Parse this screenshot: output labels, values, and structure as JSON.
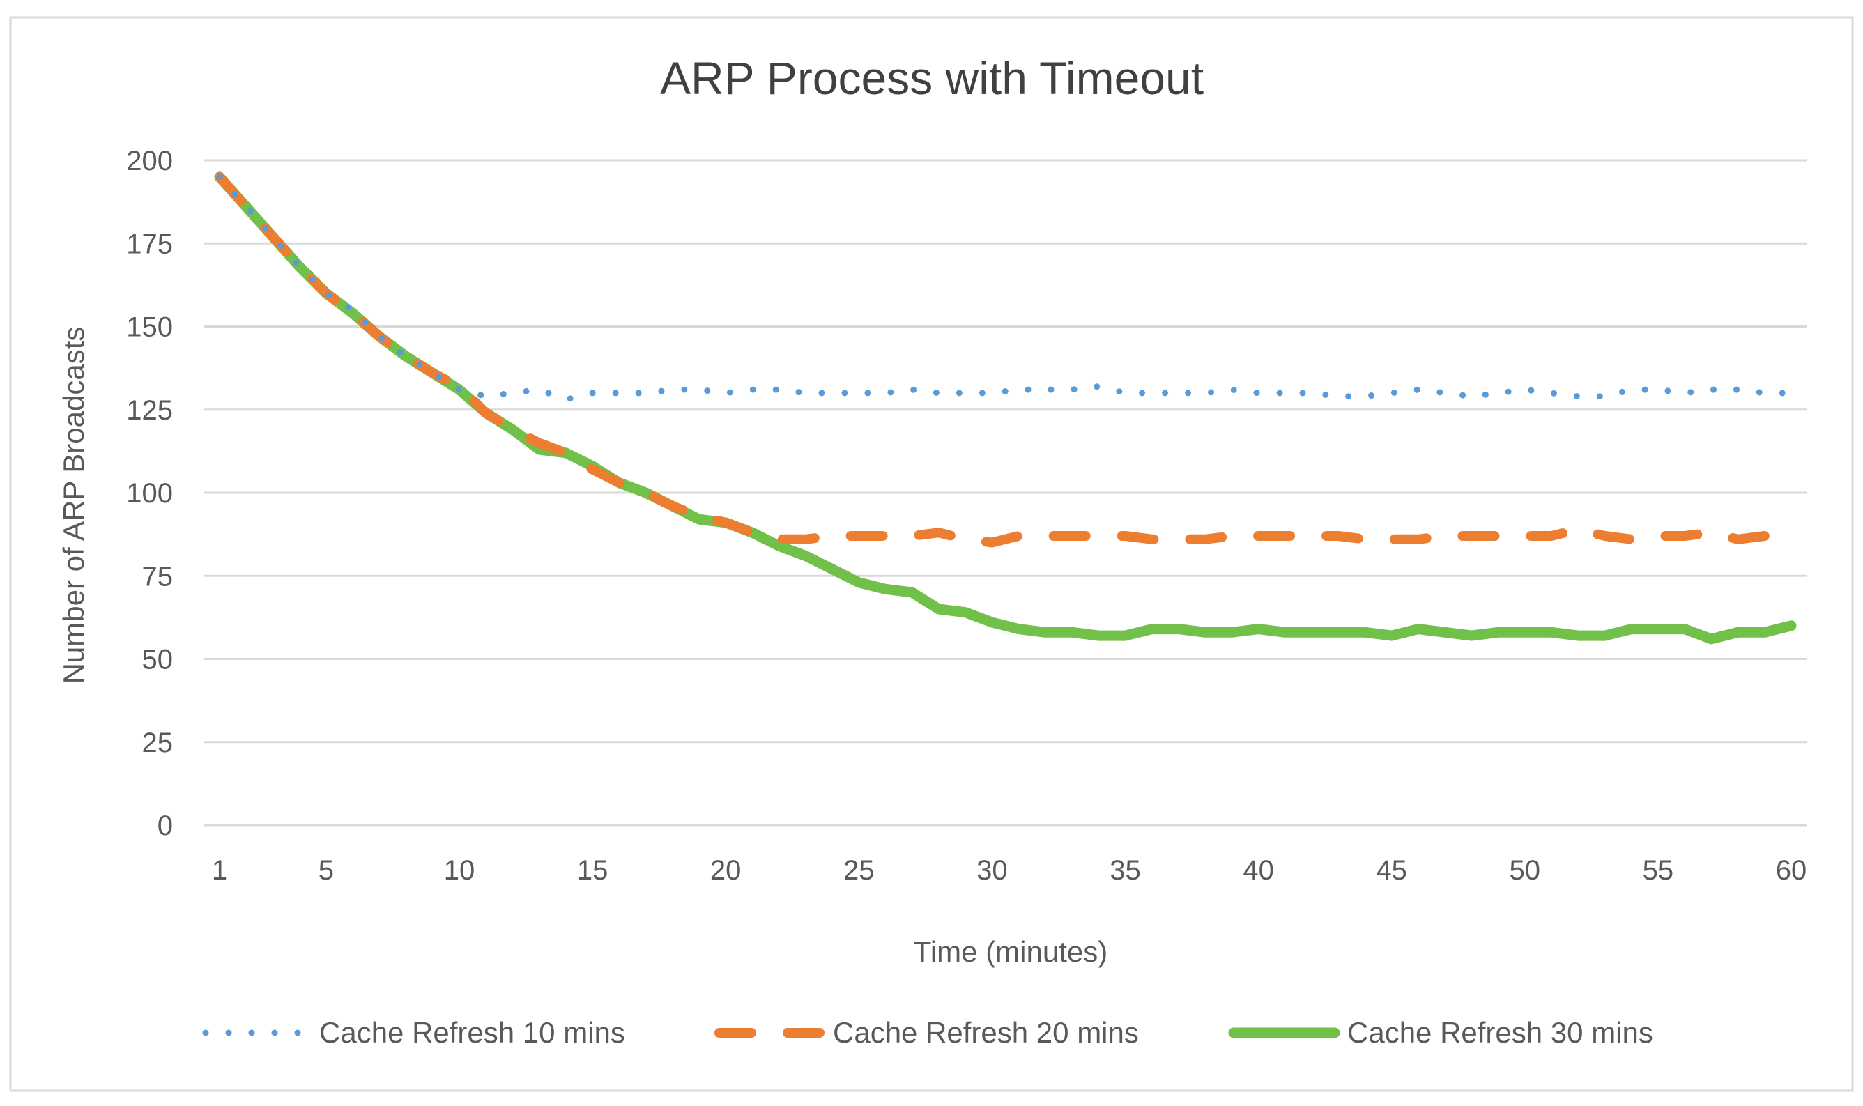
{
  "chart_data": {
    "type": "line",
    "title": "ARP Process with Timeout",
    "xlabel": "Time (minutes)",
    "ylabel": "Number of ARP Broadcasts",
    "xlim": [
      1,
      60
    ],
    "ylim": [
      0,
      200
    ],
    "x_ticks": [
      "1",
      "5",
      "10",
      "15",
      "20",
      "25",
      "30",
      "35",
      "40",
      "45",
      "50",
      "55",
      "60"
    ],
    "y_ticks": [
      "0",
      "25",
      "50",
      "75",
      "100",
      "125",
      "150",
      "175",
      "200"
    ],
    "grid": "horizontal",
    "legend_position": "bottom",
    "x": [
      1,
      2,
      3,
      4,
      5,
      6,
      7,
      8,
      9,
      10,
      11,
      12,
      13,
      14,
      15,
      16,
      17,
      18,
      19,
      20,
      21,
      22,
      23,
      24,
      25,
      26,
      27,
      28,
      29,
      30,
      31,
      32,
      33,
      34,
      35,
      36,
      37,
      38,
      39,
      40,
      41,
      42,
      43,
      44,
      45,
      46,
      47,
      48,
      49,
      50,
      51,
      52,
      53,
      54,
      55,
      56,
      57,
      58,
      59,
      60
    ],
    "series": [
      {
        "name": "Cache Refresh 10 mins",
        "color": "#5B9BD5",
        "style": "dotted",
        "values": [
          195,
          186,
          177,
          168,
          160,
          155,
          147,
          141,
          136,
          131,
          129,
          130,
          131,
          128,
          130,
          130,
          130,
          131,
          131,
          130,
          131,
          131,
          130,
          130,
          130,
          130,
          131,
          130,
          130,
          130,
          131,
          131,
          131,
          132,
          130,
          130,
          130,
          130,
          131,
          130,
          130,
          130,
          129,
          129,
          130,
          131,
          130,
          129,
          130,
          131,
          130,
          129,
          129,
          131,
          131,
          130,
          131,
          131,
          130,
          130
        ]
      },
      {
        "name": "Cache Refresh 20 mins",
        "color": "#ED7D31",
        "style": "dashed",
        "values": [
          195,
          186,
          177,
          168,
          160,
          154,
          147,
          141,
          136,
          132,
          124,
          119,
          115,
          112,
          107,
          103,
          100,
          96,
          93,
          91,
          88,
          86,
          86,
          87,
          87,
          87,
          87,
          88,
          86,
          85,
          87,
          87,
          87,
          87,
          87,
          86,
          86,
          86,
          87,
          87,
          87,
          87,
          87,
          86,
          86,
          86,
          87,
          87,
          87,
          87,
          87,
          89,
          87,
          86,
          87,
          87,
          88,
          86,
          87,
          88
        ]
      },
      {
        "name": "Cache Refresh 30 mins",
        "color": "#70C04A",
        "style": "solid",
        "values": [
          195,
          186,
          177,
          168,
          160,
          154,
          147,
          141,
          136,
          131,
          124,
          119,
          113,
          112,
          108,
          103,
          100,
          96,
          92,
          91,
          88,
          84,
          81,
          77,
          73,
          71,
          70,
          65,
          64,
          61,
          59,
          58,
          58,
          57,
          57,
          59,
          59,
          58,
          58,
          59,
          58,
          58,
          58,
          58,
          57,
          59,
          58,
          57,
          58,
          58,
          58,
          57,
          57,
          59,
          59,
          59,
          56,
          58,
          58,
          60
        ]
      }
    ]
  }
}
